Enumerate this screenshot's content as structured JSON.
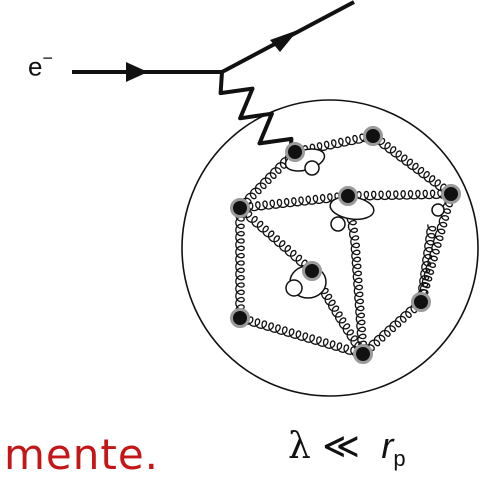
{
  "labels": {
    "electron_symbol": "e",
    "electron_charge": "−",
    "caption_fragment": "mente.",
    "wavelength_symbol": "λ",
    "relation_symbol": "≪",
    "radius_symbol": "r",
    "radius_subscript": "p"
  },
  "colors": {
    "caption": "#c41616",
    "quark_fill": "#111111",
    "quark_ring": "#9a9a9a",
    "line": "#111111"
  }
}
